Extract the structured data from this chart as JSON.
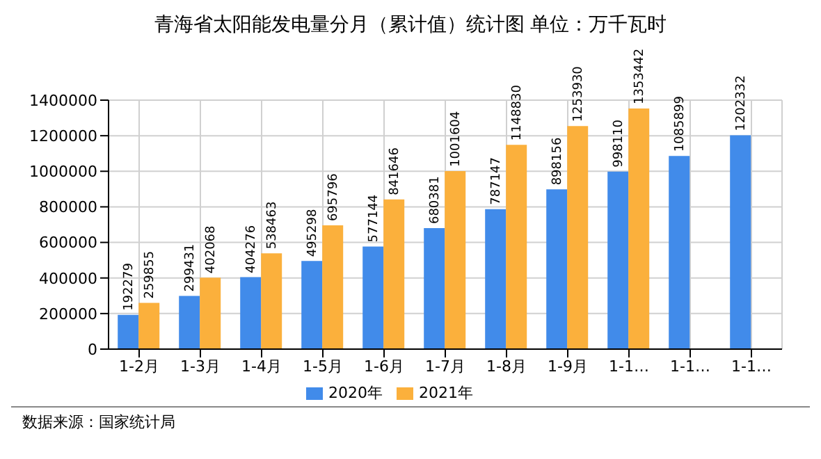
{
  "chart_data": {
    "type": "bar",
    "title": "青海省太阳能发电量分月（累计值）统计图 单位：万千瓦时",
    "categories": [
      "1-2月",
      "1-3月",
      "1-4月",
      "1-5月",
      "1-6月",
      "1-7月",
      "1-8月",
      "1-9月",
      "1-1…",
      "1-1…",
      "1-1…"
    ],
    "series": [
      {
        "name": "2020年",
        "color": "#418bea",
        "values": [
          192279,
          299431,
          404276,
          495298,
          577144,
          680381,
          787147,
          898156,
          998110,
          1085899,
          1202332
        ]
      },
      {
        "name": "2021年",
        "color": "#fbb03c",
        "values": [
          259855,
          402068,
          538463,
          695796,
          841646,
          1001604,
          1148830,
          1253930,
          1353442,
          null,
          null
        ]
      }
    ],
    "ylim": [
      0,
      1400000
    ],
    "yticks": [
      0,
      200000,
      400000,
      600000,
      800000,
      1000000,
      1200000,
      1400000
    ],
    "grid": true,
    "legend": "bottom",
    "data_labels": true,
    "annotations": [
      "数据来源：国家统计局"
    ]
  }
}
